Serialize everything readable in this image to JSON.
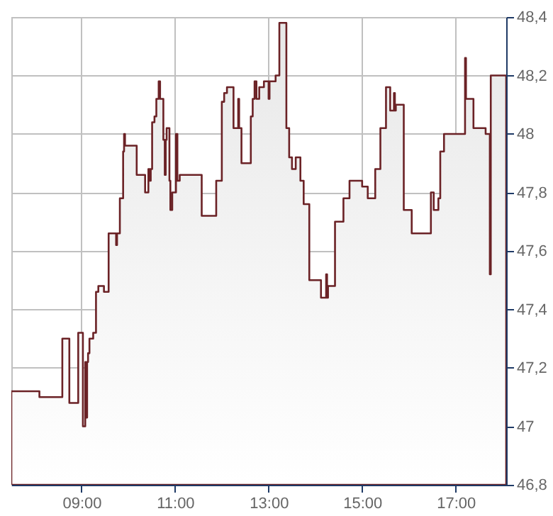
{
  "chart_data": {
    "type": "area",
    "x": [
      7.5,
      8.1,
      8.59,
      8.74,
      8.93,
      9.03,
      9.08,
      9.1,
      9.12,
      9.14,
      9.17,
      9.25,
      9.31,
      9.36,
      9.48,
      9.58,
      9.74,
      9.76,
      9.82,
      9.89,
      9.91,
      9.93,
      10.18,
      10.36,
      10.43,
      10.46,
      10.48,
      10.51,
      10.56,
      10.6,
      10.65,
      10.68,
      10.75,
      10.78,
      10.8,
      10.82,
      10.88,
      10.9,
      10.94,
      11.02,
      11.05,
      11.1,
      11.57,
      11.88,
      12.0,
      12.05,
      12.11,
      12.25,
      12.35,
      12.37,
      12.42,
      12.62,
      12.66,
      12.7,
      12.74,
      12.8,
      12.9,
      13.0,
      13.02,
      13.05,
      13.15,
      13.23,
      13.38,
      13.44,
      13.5,
      13.58,
      13.68,
      13.75,
      13.87,
      14.12,
      14.23,
      14.25,
      14.27,
      14.42,
      14.6,
      14.73,
      15.0,
      15.12,
      15.28,
      15.39,
      15.51,
      15.6,
      15.68,
      15.7,
      15.72,
      15.89,
      16.06,
      16.47,
      16.53,
      16.63,
      16.67,
      16.75,
      17.2,
      17.22,
      17.38,
      17.64,
      17.73,
      17.75,
      18.08
    ],
    "series": [
      {
        "color": "#6b2226",
        "values": [
          47.12,
          47.1,
          47.3,
          47.08,
          47.32,
          47.0,
          47.22,
          47.03,
          47.22,
          47.25,
          47.3,
          47.32,
          47.46,
          47.48,
          47.46,
          47.66,
          47.62,
          47.66,
          47.78,
          47.94,
          48.0,
          47.96,
          47.86,
          47.8,
          47.88,
          47.84,
          47.88,
          48.04,
          48.06,
          48.12,
          48.18,
          48.12,
          47.98,
          47.86,
          47.98,
          48.02,
          47.84,
          47.74,
          47.8,
          48.0,
          47.84,
          47.86,
          47.72,
          47.84,
          48.11,
          48.14,
          48.16,
          48.02,
          48.12,
          48.02,
          47.9,
          48.06,
          48.12,
          48.18,
          48.12,
          48.16,
          48.18,
          48.12,
          48.18,
          48.18,
          48.2,
          48.38,
          48.02,
          47.92,
          47.88,
          47.92,
          47.84,
          47.76,
          47.5,
          47.44,
          47.52,
          47.44,
          47.48,
          47.7,
          47.78,
          47.84,
          47.82,
          47.78,
          47.88,
          48.02,
          48.16,
          48.08,
          48.14,
          48.08,
          48.1,
          47.74,
          47.66,
          47.8,
          47.74,
          47.78,
          47.94,
          48.0,
          48.26,
          48.12,
          48.02,
          48.0,
          47.52,
          48.2,
          48.2
        ]
      }
    ],
    "xlim": [
      7.5,
      18.08
    ],
    "ylim": [
      46.8,
      48.4
    ],
    "xticks": [
      {
        "value": 9,
        "label": "09:00"
      },
      {
        "value": 11,
        "label": "11:00"
      },
      {
        "value": 13,
        "label": "13:00"
      },
      {
        "value": 15,
        "label": "15:00"
      },
      {
        "value": 17,
        "label": "17:00"
      }
    ],
    "yticks": [
      {
        "value": 46.8,
        "label": "46,8"
      },
      {
        "value": 47,
        "label": "47"
      },
      {
        "value": 47.2,
        "label": "47,2"
      },
      {
        "value": 47.4,
        "label": "47,4"
      },
      {
        "value": 47.6,
        "label": "47,6"
      },
      {
        "value": 47.8,
        "label": "47,8"
      },
      {
        "value": 48,
        "label": "48"
      },
      {
        "value": 48.2,
        "label": "48,2"
      },
      {
        "value": 48.4,
        "label": "48,4"
      }
    ],
    "grid": true
  }
}
